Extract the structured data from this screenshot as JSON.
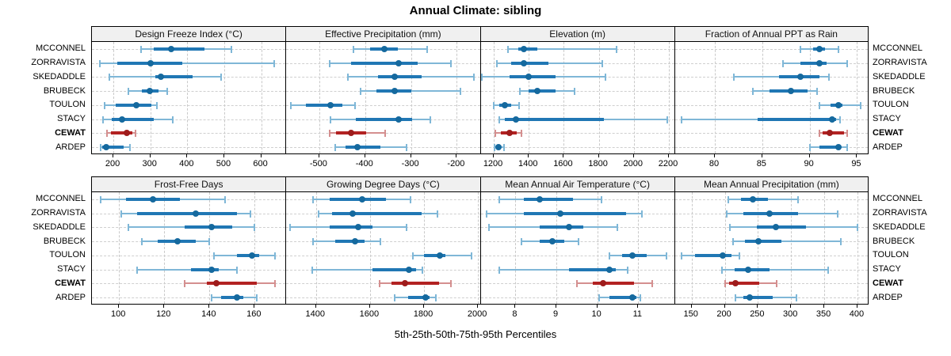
{
  "title": "Annual Climate: sibling",
  "caption": "5th-25th-50th-75th-95th Percentiles",
  "stations": [
    "MCCONNEL",
    "ZORRAVISTA",
    "SKEDADDLE",
    "BRUBECK",
    "TOULON",
    "STACY",
    "CEWAT",
    "ARDEP"
  ],
  "highlight_station": "CEWAT",
  "percentile_levels": [
    5,
    25,
    50,
    75,
    95
  ],
  "colors": {
    "blue": "#2077b4",
    "blue_dot": "#15699e",
    "blue_light": "#7fb7d7",
    "red": "#b22222",
    "red_dot": "#9e1c1c",
    "red_light": "#d48f8f",
    "grid": "#c9c9c9",
    "strip_bg": "#f0f0f0",
    "border": "#000000"
  },
  "chart_data": [
    {
      "type": "dotplot-percentiles",
      "title": "Design Freeze Index (°C)",
      "row": 0,
      "col": 0,
      "xlim": [
        142,
        668
      ],
      "ticks": [
        200,
        300,
        400,
        500,
        600
      ],
      "series": {
        "MCCONNEL": [
          275,
          310,
          356,
          446,
          519
        ],
        "ZORRAVISTA": [
          164,
          210,
          300,
          387,
          636
        ],
        "SKEDADDLE": [
          189,
          313,
          329,
          415,
          492
        ],
        "BRUBECK": [
          241,
          277,
          298,
          323,
          345
        ],
        "TOULON": [
          176,
          207,
          263,
          303,
          318
        ],
        "STACY": [
          172,
          196,
          224,
          310,
          360
        ],
        "CEWAT": [
          182,
          194,
          236,
          252,
          259
        ],
        "ARDEP": [
          166,
          170,
          181,
          228,
          245
        ]
      }
    },
    {
      "type": "dotplot-percentiles",
      "title": "Effective Precipitation (mm)",
      "row": 0,
      "col": 1,
      "xlim": [
        -572,
        -148
      ],
      "ticks": [
        -500,
        -400,
        -300,
        -200
      ],
      "series": {
        "MCCONNEL": [
          -425,
          -390,
          -358,
          -328,
          -265
        ],
        "ZORRAVISTA": [
          -478,
          -430,
          -327,
          -285,
          -213
        ],
        "SKEDADDLE": [
          -437,
          -372,
          -335,
          -277,
          -162
        ],
        "BRUBECK": [
          -410,
          -375,
          -336,
          -300,
          -192
        ],
        "TOULON": [
          -562,
          -530,
          -476,
          -450,
          -422
        ],
        "STACY": [
          -475,
          -420,
          -327,
          -298,
          -258
        ],
        "CEWAT": [
          -477,
          -463,
          -430,
          -398,
          -356
        ],
        "ARDEP": [
          -465,
          -442,
          -416,
          -366,
          -310
        ]
      }
    },
    {
      "type": "dotplot-percentiles",
      "title": "Elevation (m)",
      "row": 0,
      "col": 2,
      "xlim": [
        1125,
        2235
      ],
      "ticks": [
        1200,
        1400,
        1600,
        1800,
        2000,
        2200
      ],
      "series": {
        "MCCONNEL": [
          1280,
          1340,
          1372,
          1450,
          1900
        ],
        "ZORRAVISTA": [
          1218,
          1300,
          1372,
          1510,
          1820
        ],
        "SKEDADDLE": [
          1132,
          1290,
          1400,
          1552,
          1840
        ],
        "BRUBECK": [
          1350,
          1400,
          1448,
          1552,
          1662
        ],
        "TOULON": [
          1200,
          1230,
          1262,
          1300,
          1345
        ],
        "STACY": [
          1230,
          1262,
          1325,
          1830,
          2190
        ],
        "CEWAT": [
          1208,
          1240,
          1292,
          1332,
          1358
        ],
        "ARDEP": [
          1205,
          1215,
          1228,
          1242,
          1258
        ]
      }
    },
    {
      "type": "dotplot-percentiles",
      "title": "Fraction of Annual PPT as Rain",
      "row": 0,
      "col": 3,
      "xlim": [
        75.8,
        96.3
      ],
      "ticks": [
        80,
        85,
        90,
        95
      ],
      "series": {
        "MCCONNEL": [
          89.0,
          90.4,
          91.0,
          91.6,
          93.0
        ],
        "ZORRAVISTA": [
          87.2,
          89.0,
          91.0,
          91.8,
          94.0
        ],
        "SKEDADDLE": [
          82.0,
          86.8,
          89.0,
          91.0,
          92.0
        ],
        "BRUBECK": [
          84.0,
          85.8,
          88.0,
          89.8,
          90.8
        ],
        "TOULON": [
          91.0,
          92.2,
          93.0,
          93.5,
          95.4
        ],
        "STACY": [
          76.5,
          84.5,
          92.4,
          92.8,
          93.2
        ],
        "CEWAT": [
          91.0,
          91.4,
          92.1,
          93.6,
          94.0
        ],
        "ARDEP": [
          90.0,
          91.0,
          93.0,
          93.3,
          94.0
        ]
      }
    },
    {
      "type": "dotplot-percentiles",
      "title": "Frost-Free Days",
      "row": 1,
      "col": 0,
      "xlim": [
        88,
        174
      ],
      "ticks": [
        100,
        120,
        140,
        160
      ],
      "series": {
        "MCCONNEL": [
          92,
          103,
          115,
          127,
          147
        ],
        "ZORRAVISTA": [
          101,
          108,
          134,
          152,
          158
        ],
        "SKEDADDLE": [
          104,
          129,
          141,
          150,
          160
        ],
        "BRUBECK": [
          110,
          117,
          126,
          134,
          140
        ],
        "TOULON": [
          142,
          152,
          159,
          162,
          169
        ],
        "STACY": [
          108,
          132,
          141,
          144,
          152
        ],
        "CEWAT": [
          129,
          139,
          143,
          161,
          169
        ],
        "ARDEP": [
          141,
          145,
          152,
          155,
          161
        ]
      }
    },
    {
      "type": "dotplot-percentiles",
      "title": "Growing Degree Days (°C)",
      "row": 1,
      "col": 1,
      "xlim": [
        1290,
        2010
      ],
      "ticks": [
        1400,
        1600,
        1800,
        2000
      ],
      "series": {
        "MCCONNEL": [
          1390,
          1450,
          1570,
          1660,
          1750
        ],
        "ZORRAVISTA": [
          1410,
          1460,
          1535,
          1790,
          1850
        ],
        "SKEDADDLE": [
          1305,
          1450,
          1555,
          1610,
          1735
        ],
        "BRUBECK": [
          1390,
          1470,
          1545,
          1580,
          1640
        ],
        "TOULON": [
          1760,
          1800,
          1860,
          1880,
          1975
        ],
        "STACY": [
          1385,
          1610,
          1745,
          1770,
          1795
        ],
        "CEWAT": [
          1635,
          1680,
          1730,
          1855,
          1900
        ],
        "ARDEP": [
          1690,
          1740,
          1805,
          1822,
          1845
        ]
      }
    },
    {
      "type": "dotplot-percentiles",
      "title": "Mean Annual Air Temperature (°C)",
      "row": 1,
      "col": 2,
      "xlim": [
        7.15,
        11.9
      ],
      "ticks": [
        8,
        9,
        10,
        11
      ],
      "series": {
        "MCCONNEL": [
          7.6,
          8.2,
          8.6,
          9.4,
          10.1
        ],
        "ZORRAVISTA": [
          7.3,
          8.2,
          9.1,
          10.7,
          11.1
        ],
        "SKEDADDLE": [
          7.35,
          8.6,
          9.3,
          9.65,
          10.5
        ],
        "BRUBECK": [
          8.15,
          8.6,
          8.9,
          9.2,
          9.55
        ],
        "TOULON": [
          10.3,
          10.6,
          10.85,
          11.2,
          11.7
        ],
        "STACY": [
          7.6,
          9.3,
          10.3,
          10.45,
          10.75
        ],
        "CEWAT": [
          9.5,
          9.9,
          10.15,
          10.9,
          11.35
        ],
        "ARDEP": [
          10.05,
          10.3,
          10.85,
          10.95,
          11.05
        ]
      }
    },
    {
      "type": "dotplot-percentiles",
      "title": "Mean Annual Precipitation (mm)",
      "row": 1,
      "col": 3,
      "xlim": [
        125,
        418
      ],
      "ticks": [
        150,
        200,
        250,
        300,
        350,
        400
      ],
      "series": {
        "MCCONNEL": [
          205,
          225,
          242,
          265,
          310
        ],
        "ZORRAVISTA": [
          203,
          228,
          267,
          310,
          370
        ],
        "SKEDADDLE": [
          208,
          248,
          277,
          322,
          400
        ],
        "BRUBECK": [
          213,
          230,
          251,
          285,
          375
        ],
        "TOULON": [
          135,
          155,
          197,
          210,
          222
        ],
        "STACY": [
          196,
          215,
          235,
          268,
          356
        ],
        "CEWAT": [
          200,
          207,
          216,
          252,
          278
        ],
        "ARDEP": [
          216,
          228,
          238,
          272,
          308
        ]
      }
    }
  ]
}
